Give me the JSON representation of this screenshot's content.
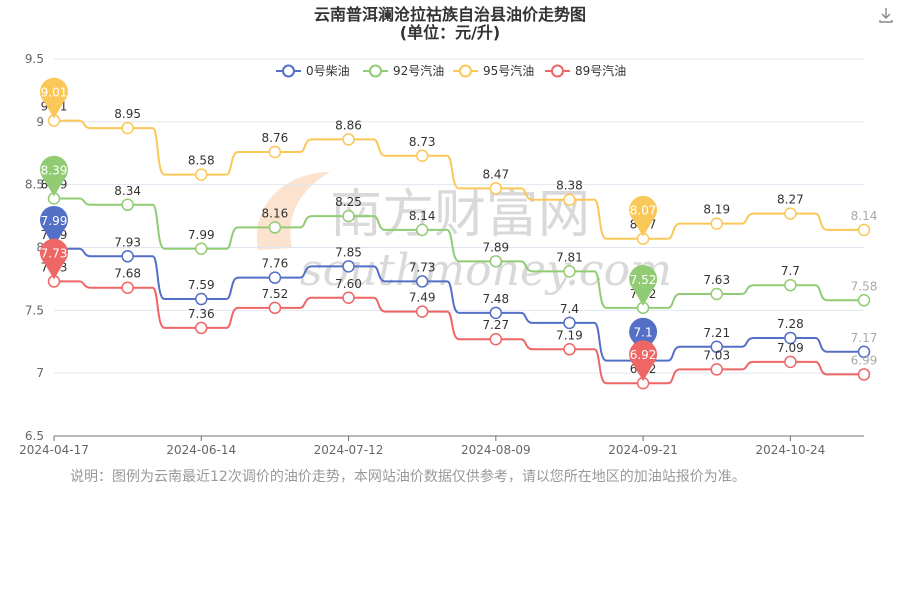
{
  "chart_data": {
    "type": "line",
    "title": "云南普洱澜沧拉祜族自治县油价走势图",
    "subtitle": "(单位：元/升)",
    "categories": [
      "2024-04-17",
      "",
      "2024-06-14",
      "",
      "2024-07-12",
      "",
      "2024-08-09",
      "",
      "2024-09-21",
      "",
      "2024-10-24",
      ""
    ],
    "x_tick_labels": [
      "2024-04-17",
      "2024-06-14",
      "2024-07-12",
      "2024-08-09",
      "2024-09-21",
      "2024-10-24"
    ],
    "ylim": [
      6.5,
      9.5
    ],
    "yticks": [
      "6.5",
      "7",
      "7.5",
      "8",
      "8.5",
      "9",
      "9.5"
    ],
    "grid": true,
    "legend_position": "top",
    "series": [
      {
        "name": "0号柴油",
        "color": "#5470c6",
        "values": [
          7.99,
          7.93,
          7.59,
          7.76,
          7.85,
          7.73,
          7.48,
          7.4,
          7.1,
          7.21,
          7.28,
          7.17
        ],
        "labels": [
          "7.99",
          "7.93",
          "7.59",
          "7.76",
          "7.85",
          "7.73",
          "7.48",
          "7.4",
          "7.1",
          "7.21",
          "7.28",
          "7.17"
        ],
        "max_label": "7.99",
        "min_label": "7.1"
      },
      {
        "name": "92号汽油",
        "color": "#91cc75",
        "values": [
          8.39,
          8.34,
          7.99,
          8.16,
          8.25,
          8.14,
          7.89,
          7.81,
          7.52,
          7.63,
          7.7,
          7.58
        ],
        "labels": [
          "8.39",
          "8.34",
          "7.99",
          "8.16",
          "8.25",
          "8.14",
          "7.89",
          "7.81",
          "7.52",
          "7.63",
          "7.7",
          "7.58"
        ],
        "max_label": "8.39",
        "min_label": "7.52"
      },
      {
        "name": "95号汽油",
        "color": "#fac858",
        "values": [
          9.01,
          8.95,
          8.58,
          8.76,
          8.86,
          8.73,
          8.47,
          8.38,
          8.07,
          8.19,
          8.27,
          8.14
        ],
        "labels": [
          "9.01",
          "8.95",
          "8.58",
          "8.76",
          "8.86",
          "8.73",
          "8.47",
          "8.38",
          "8.07",
          "8.19",
          "8.27",
          "8.14"
        ],
        "max_label": "9.01",
        "min_label": "8.07"
      },
      {
        "name": "89号汽油",
        "color": "#ee6666",
        "values": [
          7.73,
          7.68,
          7.36,
          7.52,
          7.6,
          7.49,
          7.27,
          7.19,
          6.92,
          7.03,
          7.09,
          6.99
        ],
        "labels": [
          "7.73",
          "7.68",
          "7.36",
          "7.52",
          "7.60",
          "7.49",
          "7.27",
          "7.19",
          "6.92",
          "7.03",
          "7.09",
          "6.99"
        ],
        "max_label": "7.73",
        "min_label": "6.92"
      }
    ]
  },
  "note": "说明：图例为云南最近12次调价的油价走势，本网站油价数据仅供参考，请以您所在地区的加油站报价为准。",
  "watermark": {
    "text": "南方财富网",
    "text2": "southmoney.com"
  },
  "toolbar": {
    "download_icon": "download-icon"
  }
}
